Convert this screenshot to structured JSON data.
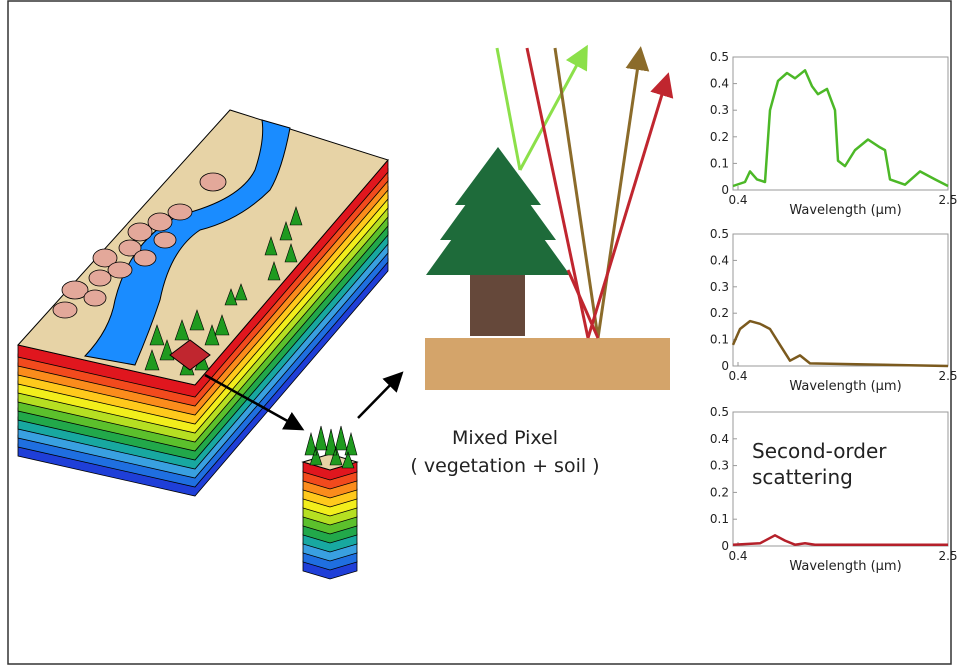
{
  "diagram": {
    "caption": {
      "line1": "Mixed Pixel",
      "line2": "( vegetation + soil )"
    }
  },
  "plots": [
    {
      "type": "line",
      "color": "#4cb827",
      "xlabel": "Wavelength (µm)",
      "xlim": [
        0.35,
        2.5
      ],
      "xticks": [
        0.4,
        2.5
      ],
      "ylim": [
        0,
        0.5
      ],
      "yticks": [
        0,
        0.1,
        0.2,
        0.3,
        0.4,
        0.5
      ],
      "x": [
        0.35,
        0.47,
        0.52,
        0.59,
        0.67,
        0.72,
        0.8,
        0.89,
        0.97,
        1.07,
        1.14,
        1.2,
        1.29,
        1.37,
        1.4,
        1.47,
        1.57,
        1.7,
        1.82,
        1.87,
        1.92,
        2.07,
        2.22,
        2.37,
        2.5
      ],
      "values": [
        0.015,
        0.03,
        0.07,
        0.04,
        0.03,
        0.3,
        0.41,
        0.44,
        0.42,
        0.45,
        0.39,
        0.36,
        0.38,
        0.3,
        0.11,
        0.09,
        0.15,
        0.19,
        0.16,
        0.15,
        0.04,
        0.02,
        0.07,
        0.04,
        0.015
      ]
    },
    {
      "type": "line",
      "color": "#7b5a1e",
      "xlabel": "Wavelength (µm)",
      "xlim": [
        0.35,
        2.5
      ],
      "xticks": [
        0.4,
        2.5
      ],
      "ylim": [
        0,
        0.5
      ],
      "yticks": [
        0,
        0.1,
        0.2,
        0.3,
        0.4,
        0.5
      ],
      "x": [
        0.35,
        0.42,
        0.52,
        0.62,
        0.72,
        0.82,
        0.92,
        1.02,
        1.12,
        2.5
      ],
      "values": [
        0.08,
        0.14,
        0.17,
        0.16,
        0.14,
        0.08,
        0.02,
        0.04,
        0.01,
        0
      ]
    },
    {
      "type": "line",
      "color": "#b5202a",
      "xlabel": "Wavelength (µm)",
      "xlim": [
        0.35,
        2.5
      ],
      "xticks": [
        0.4,
        2.5
      ],
      "ylim": [
        0,
        0.5
      ],
      "yticks": [
        0,
        0.1,
        0.2,
        0.3,
        0.4,
        0.5
      ],
      "annotation": [
        "Second-order",
        "scattering"
      ],
      "x": [
        0.35,
        0.62,
        0.77,
        0.87,
        0.97,
        1.07,
        1.17,
        2.5
      ],
      "values": [
        0.005,
        0.01,
        0.04,
        0.02,
        0.005,
        0.01,
        0.005,
        0.005
      ]
    }
  ]
}
